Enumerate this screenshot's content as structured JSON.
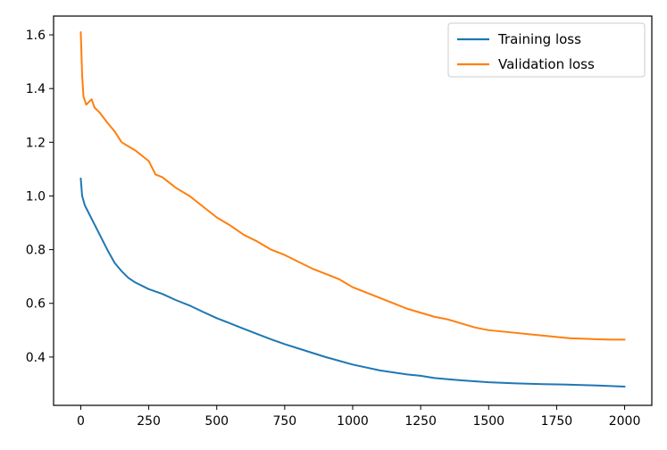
{
  "chart_data": {
    "type": "line",
    "title": "",
    "xlabel": "",
    "ylabel": "",
    "xlim": [
      -100,
      2100
    ],
    "ylim": [
      0.22,
      1.67
    ],
    "xticks": [
      0,
      250,
      500,
      750,
      1000,
      1250,
      1500,
      1750,
      2000
    ],
    "xtick_labels": [
      "0",
      "250",
      "500",
      "750",
      "1000",
      "1250",
      "1500",
      "1750",
      "2000"
    ],
    "yticks": [
      0.4,
      0.6,
      0.8,
      1.0,
      1.2,
      1.4,
      1.6
    ],
    "ytick_labels": [
      "0.4",
      "0.6",
      "0.8",
      "1.0",
      "1.2",
      "1.4",
      "1.6"
    ],
    "grid": false,
    "legend_position": "upper right",
    "series": [
      {
        "name": "Training loss",
        "color": "#1f77b4",
        "x": [
          0,
          5,
          15,
          30,
          50,
          75,
          100,
          125,
          150,
          175,
          200,
          250,
          300,
          350,
          400,
          450,
          500,
          600,
          700,
          750,
          800,
          900,
          1000,
          1100,
          1200,
          1250,
          1300,
          1400,
          1500,
          1600,
          1700,
          1750,
          1800,
          1900,
          2000
        ],
        "y": [
          1.065,
          1.0,
          0.965,
          0.935,
          0.895,
          0.845,
          0.795,
          0.75,
          0.72,
          0.695,
          0.678,
          0.653,
          0.635,
          0.612,
          0.592,
          0.568,
          0.545,
          0.505,
          0.466,
          0.448,
          0.432,
          0.4,
          0.372,
          0.35,
          0.335,
          0.33,
          0.322,
          0.313,
          0.306,
          0.302,
          0.299,
          0.298,
          0.297,
          0.294,
          0.29
        ]
      },
      {
        "name": "Validation loss",
        "color": "#ff7f0e",
        "x": [
          0,
          5,
          10,
          20,
          30,
          40,
          50,
          70,
          100,
          125,
          150,
          175,
          200,
          250,
          275,
          300,
          350,
          400,
          450,
          500,
          550,
          600,
          650,
          700,
          750,
          800,
          850,
          900,
          950,
          1000,
          1050,
          1100,
          1150,
          1200,
          1250,
          1300,
          1350,
          1400,
          1450,
          1500,
          1550,
          1600,
          1650,
          1700,
          1750,
          1800,
          1850,
          1900,
          1950,
          2000
        ],
        "y": [
          1.61,
          1.45,
          1.37,
          1.34,
          1.35,
          1.36,
          1.33,
          1.31,
          1.27,
          1.24,
          1.2,
          1.185,
          1.17,
          1.13,
          1.08,
          1.07,
          1.03,
          1.0,
          0.96,
          0.92,
          0.89,
          0.855,
          0.83,
          0.8,
          0.78,
          0.755,
          0.73,
          0.71,
          0.69,
          0.66,
          0.64,
          0.62,
          0.6,
          0.58,
          0.565,
          0.55,
          0.54,
          0.525,
          0.51,
          0.5,
          0.495,
          0.49,
          0.485,
          0.48,
          0.475,
          0.47,
          0.468,
          0.466,
          0.465,
          0.465
        ]
      }
    ]
  }
}
